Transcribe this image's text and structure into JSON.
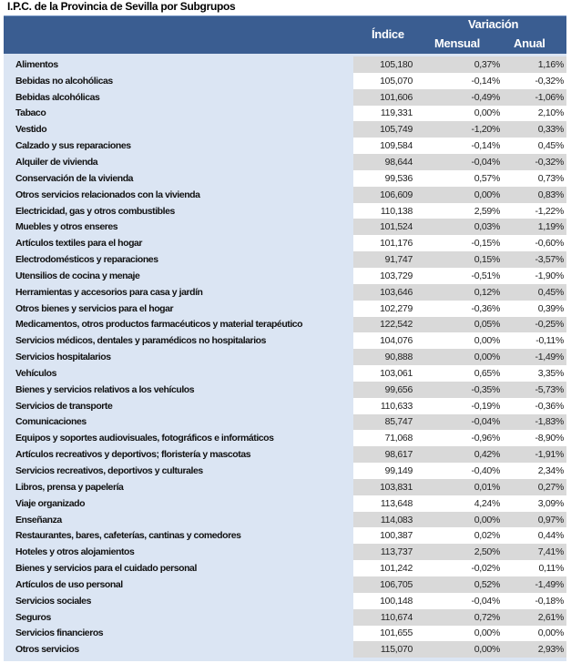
{
  "title": "I.P.C. de la Provincia de Sevilla por Subgrupos",
  "header": {
    "indice": "Índice",
    "variacion": "Variación",
    "mensual": "Mensual",
    "anual": "Anual"
  },
  "colors": {
    "header_bg": "#3a5d91",
    "label_bg": "#dbe5f3",
    "alt_row": "#d9d9d9"
  },
  "rows": [
    {
      "label": "Alimentos",
      "indice": "105,180",
      "mensual": "0,37%",
      "anual": "1,16%"
    },
    {
      "label": "Bebidas no alcohólicas",
      "indice": "105,070",
      "mensual": "-0,14%",
      "anual": "-0,32%"
    },
    {
      "label": "Bebidas alcohólicas",
      "indice": "101,606",
      "mensual": "-0,49%",
      "anual": "-1,06%"
    },
    {
      "label": "Tabaco",
      "indice": "119,331",
      "mensual": "0,00%",
      "anual": "2,10%"
    },
    {
      "label": "Vestido",
      "indice": "105,749",
      "mensual": "-1,20%",
      "anual": "0,33%"
    },
    {
      "label": "Calzado y sus reparaciones",
      "indice": "109,584",
      "mensual": "-0,14%",
      "anual": "0,45%"
    },
    {
      "label": "Alquiler de vivienda",
      "indice": "98,644",
      "mensual": "-0,04%",
      "anual": "-0,32%"
    },
    {
      "label": "Conservación de la vivienda",
      "indice": "99,536",
      "mensual": "0,57%",
      "anual": "0,73%"
    },
    {
      "label": "Otros servicios relacionados con la vivienda",
      "indice": "106,609",
      "mensual": "0,00%",
      "anual": "0,83%"
    },
    {
      "label": "Electricidad, gas y otros combustibles",
      "indice": "110,138",
      "mensual": "2,59%",
      "anual": "-1,22%"
    },
    {
      "label": "Muebles y otros enseres",
      "indice": "101,524",
      "mensual": "0,03%",
      "anual": "1,19%"
    },
    {
      "label": "Artículos textiles para el hogar",
      "indice": "101,176",
      "mensual": "-0,15%",
      "anual": "-0,60%"
    },
    {
      "label": "Electrodomésticos y reparaciones",
      "indice": "91,747",
      "mensual": "0,15%",
      "anual": "-3,57%"
    },
    {
      "label": "Utensilios de cocina y menaje",
      "indice": "103,729",
      "mensual": "-0,51%",
      "anual": "-1,90%"
    },
    {
      "label": "Herramientas y accesorios para casa y jardín",
      "indice": "103,646",
      "mensual": "0,12%",
      "anual": "0,45%"
    },
    {
      "label": "Otros bienes y servicios para el hogar",
      "indice": "102,279",
      "mensual": "-0,36%",
      "anual": "0,39%"
    },
    {
      "label": "Medicamentos, otros productos farmacéuticos y material terapéutico",
      "indice": "122,542",
      "mensual": "0,05%",
      "anual": "-0,25%"
    },
    {
      "label": "Servicios médicos, dentales y paramédicos no hospitalarios",
      "indice": "104,076",
      "mensual": "0,00%",
      "anual": "-0,11%"
    },
    {
      "label": "Servicios hospitalarios",
      "indice": "90,888",
      "mensual": "0,00%",
      "anual": "-1,49%"
    },
    {
      "label": "Vehículos",
      "indice": "103,061",
      "mensual": "0,65%",
      "anual": "3,35%"
    },
    {
      "label": "Bienes y servicios relativos a los vehículos",
      "indice": "99,656",
      "mensual": "-0,35%",
      "anual": "-5,73%"
    },
    {
      "label": "Servicios de transporte",
      "indice": "110,633",
      "mensual": "-0,19%",
      "anual": "-0,36%"
    },
    {
      "label": "Comunicaciones",
      "indice": "85,747",
      "mensual": "-0,04%",
      "anual": "-1,83%"
    },
    {
      "label": "Equipos y soportes audiovisuales, fotográficos e informáticos",
      "indice": "71,068",
      "mensual": "-0,96%",
      "anual": "-8,90%"
    },
    {
      "label": "Artículos recreativos y deportivos; floristería y mascotas",
      "indice": "98,617",
      "mensual": "0,42%",
      "anual": "-1,91%"
    },
    {
      "label": "Servicios recreativos, deportivos y culturales",
      "indice": "99,149",
      "mensual": "-0,40%",
      "anual": "2,34%"
    },
    {
      "label": "Libros, prensa y papelería",
      "indice": "103,831",
      "mensual": "0,01%",
      "anual": "0,27%"
    },
    {
      "label": "Viaje organizado",
      "indice": "113,648",
      "mensual": "4,24%",
      "anual": "3,09%"
    },
    {
      "label": "Enseñanza",
      "indice": "114,083",
      "mensual": "0,00%",
      "anual": "0,97%"
    },
    {
      "label": "Restaurantes, bares, cafeterías, cantinas y comedores",
      "indice": "100,387",
      "mensual": "0,02%",
      "anual": "0,44%"
    },
    {
      "label": "Hoteles y otros alojamientos",
      "indice": "113,737",
      "mensual": "2,50%",
      "anual": "7,41%"
    },
    {
      "label": "Bienes y servicios para el cuidado personal",
      "indice": "101,242",
      "mensual": "-0,02%",
      "anual": "0,11%"
    },
    {
      "label": "Artículos de uso personal",
      "indice": "106,705",
      "mensual": "0,52%",
      "anual": "-1,49%"
    },
    {
      "label": "Servicios sociales",
      "indice": "100,148",
      "mensual": "-0,04%",
      "anual": "-0,18%"
    },
    {
      "label": "Seguros",
      "indice": "110,674",
      "mensual": "0,72%",
      "anual": "2,61%"
    },
    {
      "label": "Servicios financieros",
      "indice": "101,655",
      "mensual": "0,00%",
      "anual": "0,00%"
    },
    {
      "label": "Otros servicios",
      "indice": "115,070",
      "mensual": "0,00%",
      "anual": "2,93%"
    }
  ]
}
